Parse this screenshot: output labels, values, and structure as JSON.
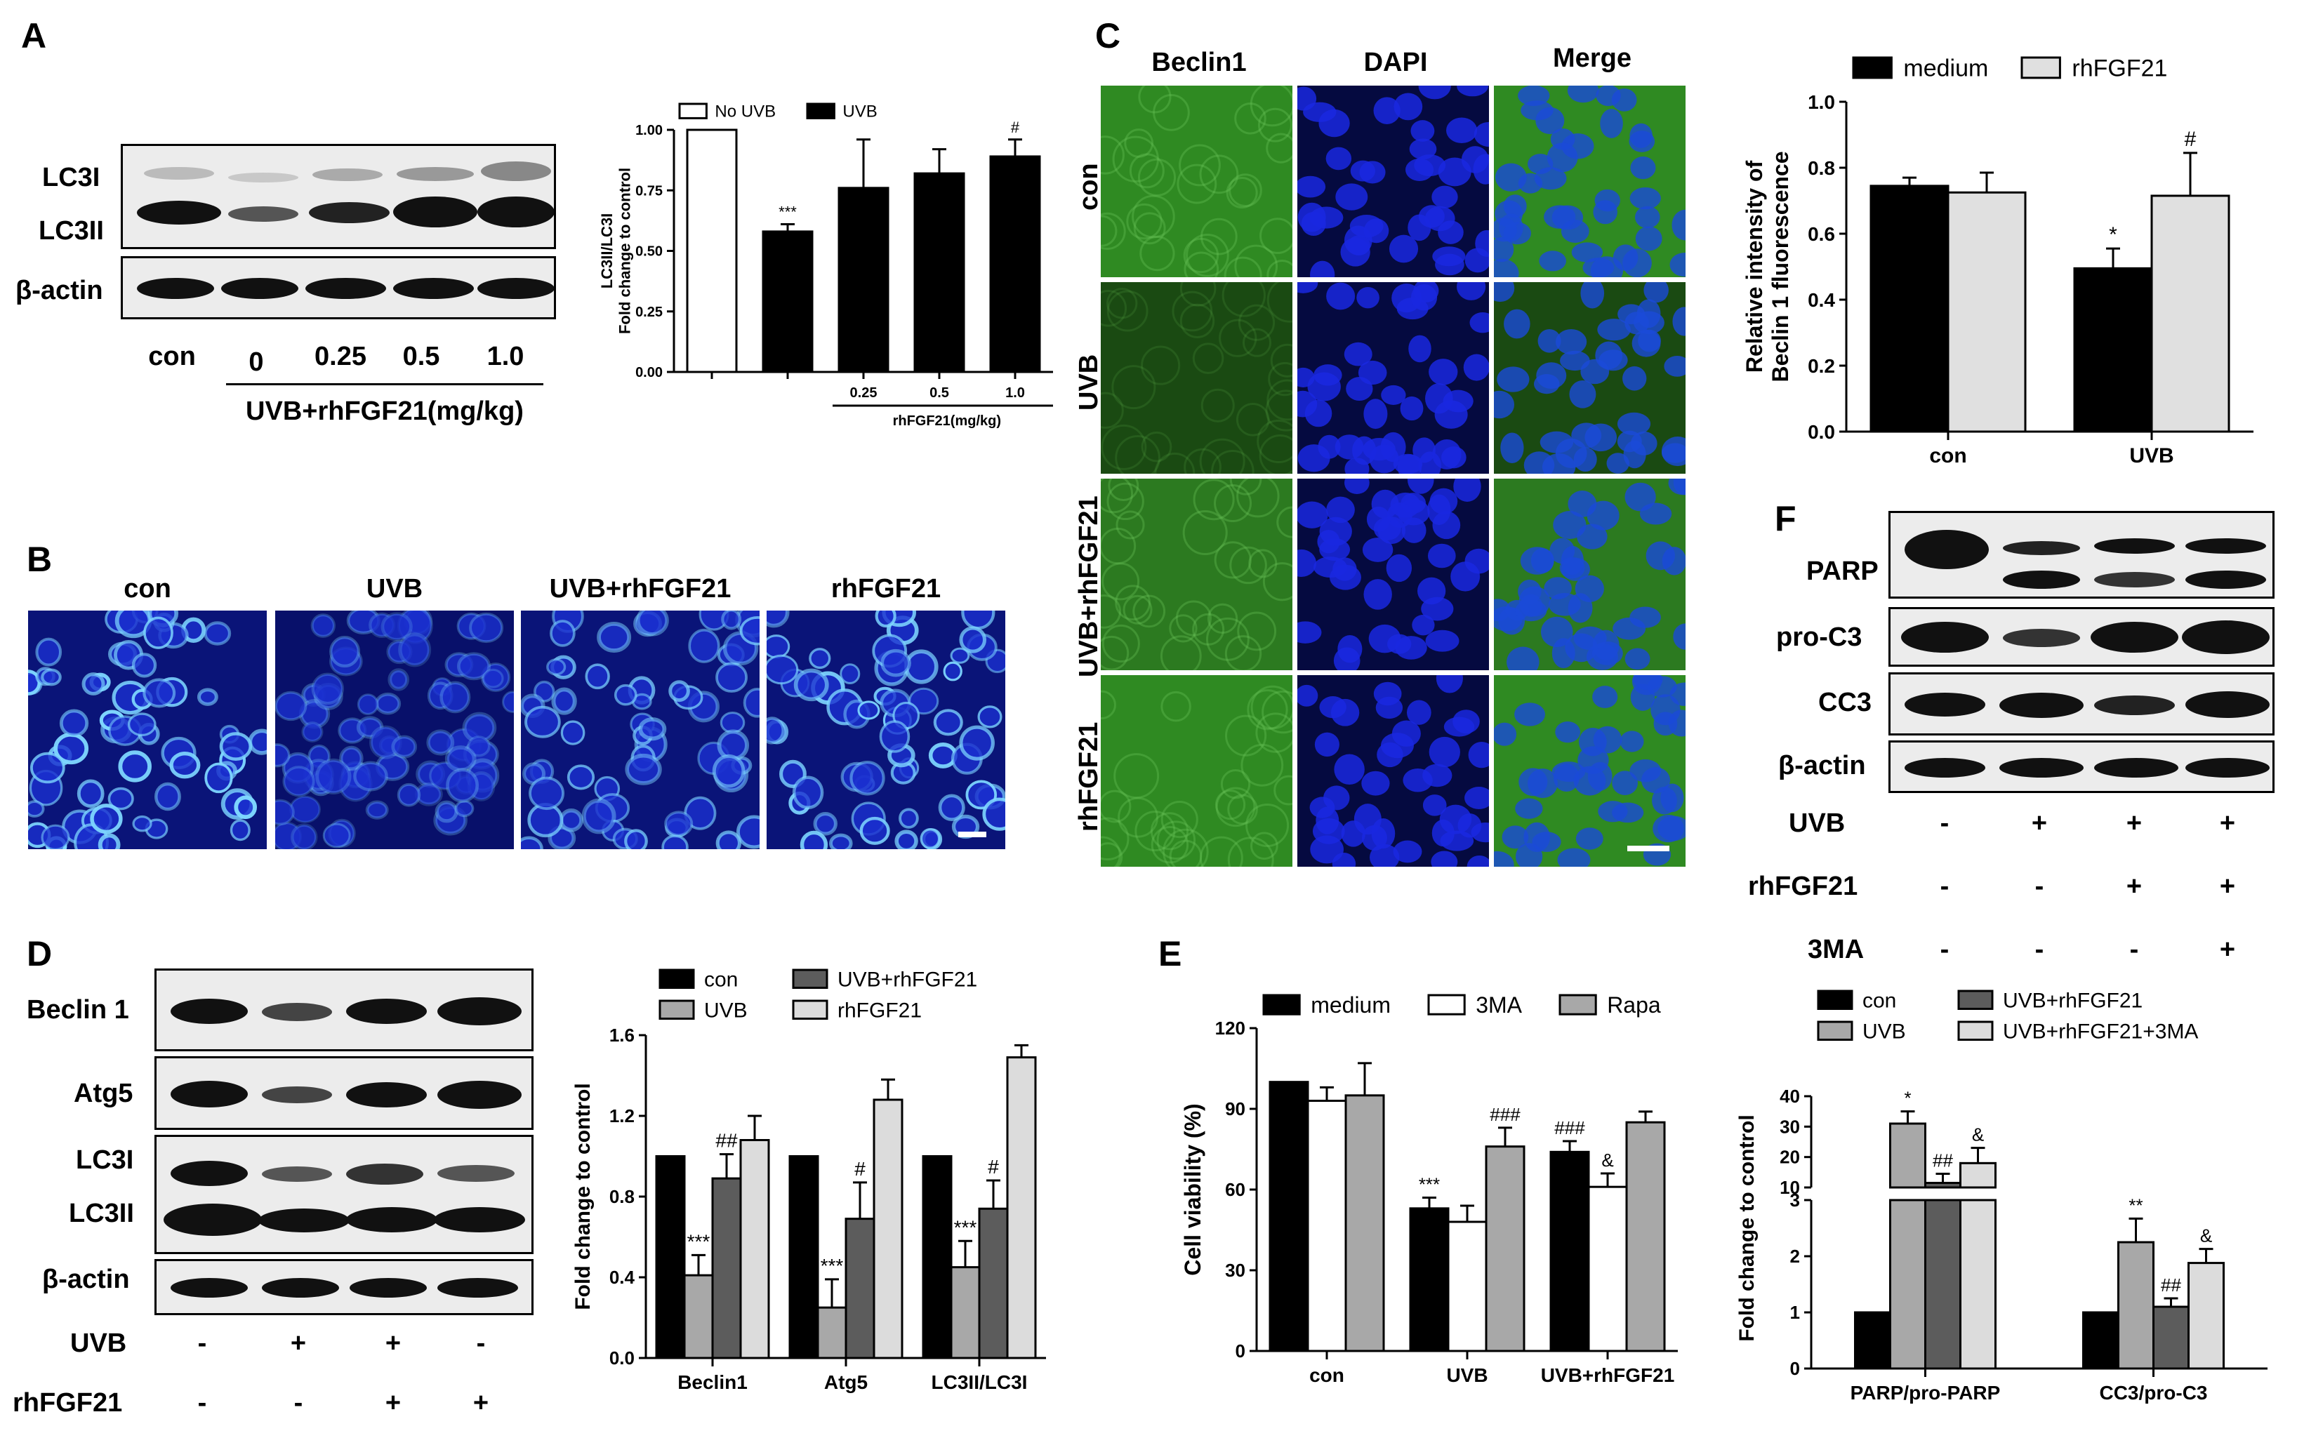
{
  "panels": {
    "A": "A",
    "B": "B",
    "C": "C",
    "D": "D",
    "E": "E",
    "F": "F"
  },
  "panelA": {
    "blot_labels": [
      "LC3I",
      "LC3II",
      "β-actin"
    ],
    "lane_labels": [
      "con",
      "0",
      "0.25",
      "0.5",
      "1.0"
    ],
    "treatment_label": "UVB+rhFGF21(mg/kg)"
  },
  "panelB": {
    "columns": [
      "con",
      "UVB",
      "UVB+rhFGF21",
      "rhFGF21"
    ],
    "colors": {
      "nucleus": "#1a2fd0",
      "bg": "#0a1478",
      "bright": "#7fd8ff"
    }
  },
  "panelC": {
    "columns": [
      "Beclin1",
      "DAPI",
      "Merge"
    ],
    "rows": [
      "con",
      "UVB",
      "UVB+rhFGF21",
      "rhFGF21"
    ],
    "colors": {
      "green": "#3a8a2a",
      "blue": "#1a28e0"
    }
  },
  "panelD": {
    "blot_labels": [
      "Beclin 1",
      "Atg5",
      "LC3I",
      "LC3II",
      "β-actin"
    ],
    "conditions": [
      {
        "label": "UVB",
        "signs": [
          "-",
          "+",
          "+",
          "-"
        ]
      },
      {
        "label": "rhFGF21",
        "signs": [
          "-",
          "-",
          "+",
          "+"
        ]
      }
    ]
  },
  "panelF": {
    "blot_labels": [
      "PARP",
      "pro-C3",
      "CC3",
      "β-actin"
    ],
    "conditions": [
      {
        "label": "UVB",
        "signs": [
          "-",
          "+",
          "+",
          "+"
        ]
      },
      {
        "label": "rhFGF21",
        "signs": [
          "-",
          "-",
          "+",
          "+"
        ]
      },
      {
        "label": "3MA",
        "signs": [
          "-",
          "-",
          "-",
          "+"
        ]
      }
    ]
  },
  "chart_data": [
    {
      "id": "A-chart",
      "type": "bar",
      "ylabel": "LC3II/LC3I\nFold change to control",
      "ylim": [
        0,
        1.0
      ],
      "yticks": [
        "0.00",
        "0.25",
        "0.50",
        "0.75",
        "1.00"
      ],
      "categories": [
        "",
        "",
        "0.25",
        "0.5",
        "1.0"
      ],
      "xgroup_label": "rhFGF21(mg/kg)",
      "legend": [
        "No UVB",
        "UVB"
      ],
      "values": [
        1.0,
        0.58,
        0.76,
        0.82,
        0.89
      ],
      "errors": [
        0,
        0.03,
        0.2,
        0.1,
        0.07
      ],
      "fills": [
        "#ffffff",
        "#000000",
        "#000000",
        "#000000",
        "#000000"
      ],
      "annotations": [
        "",
        "***",
        "",
        "",
        "#"
      ]
    },
    {
      "id": "C-chart",
      "type": "bar",
      "ylabel": "Relative intensity of\nBeclin 1 fluorescence",
      "ylim": [
        0,
        1.0
      ],
      "yticks": [
        "0.0",
        "0.2",
        "0.4",
        "0.6",
        "0.8",
        "1.0"
      ],
      "categories": [
        "con",
        "UVB"
      ],
      "series": [
        {
          "name": "medium",
          "values": [
            0.745,
            0.495
          ],
          "errors": [
            0.025,
            0.06
          ],
          "color": "#000000",
          "annotations": [
            "",
            "*"
          ]
        },
        {
          "name": "rhFGF21",
          "values": [
            0.725,
            0.715
          ],
          "errors": [
            0.06,
            0.13
          ],
          "color": "#e0e0e0",
          "annotations": [
            "",
            "#"
          ]
        }
      ]
    },
    {
      "id": "D-chart",
      "type": "bar",
      "ylabel": "Fold change to control",
      "ylim": [
        0,
        1.6
      ],
      "yticks": [
        "0.0",
        "0.4",
        "0.8",
        "1.2",
        "1.6"
      ],
      "categories": [
        "Beclin1",
        "Atg5",
        "LC3II/LC3I"
      ],
      "series": [
        {
          "name": "con",
          "values": [
            1.0,
            1.0,
            1.0
          ],
          "errors": [
            0,
            0,
            0
          ],
          "color": "#000000",
          "annotations": [
            "",
            "",
            ""
          ]
        },
        {
          "name": "UVB",
          "values": [
            0.41,
            0.25,
            0.45
          ],
          "errors": [
            0.1,
            0.14,
            0.13
          ],
          "color": "#a8a8a8",
          "annotations": [
            "***",
            "***",
            "***"
          ]
        },
        {
          "name": "UVB+rhFGF21",
          "values": [
            0.89,
            0.69,
            0.74
          ],
          "errors": [
            0.12,
            0.18,
            0.14
          ],
          "color": "#5c5c5c",
          "annotations": [
            "##",
            "#",
            "#"
          ]
        },
        {
          "name": "rhFGF21",
          "values": [
            1.08,
            1.28,
            1.49
          ],
          "errors": [
            0.12,
            0.1,
            0.06
          ],
          "color": "#dcdcdc",
          "annotations": [
            "",
            "",
            ""
          ]
        }
      ]
    },
    {
      "id": "E-chart",
      "type": "bar",
      "ylabel": "Cell viability (%)",
      "ylim": [
        0,
        120
      ],
      "yticks": [
        "0",
        "30",
        "60",
        "90",
        "120"
      ],
      "categories": [
        "con",
        "UVB",
        "UVB+rhFGF21"
      ],
      "series": [
        {
          "name": "medium",
          "values": [
            100,
            53,
            74
          ],
          "errors": [
            0,
            4,
            4
          ],
          "color": "#000000",
          "annotations": [
            "",
            "***",
            "###"
          ]
        },
        {
          "name": "3MA",
          "values": [
            93,
            48,
            61
          ],
          "errors": [
            5,
            6,
            5
          ],
          "color": "#ffffff",
          "annotations": [
            "",
            "",
            "&"
          ]
        },
        {
          "name": "Rapa",
          "values": [
            95,
            76,
            85
          ],
          "errors": [
            12,
            7,
            4
          ],
          "color": "#a8a8a8",
          "annotations": [
            "",
            "###",
            ""
          ]
        }
      ]
    },
    {
      "id": "F-chart",
      "type": "bar",
      "ylabel": "Fold change to control",
      "broken_axis": true,
      "ylim_lower": [
        0,
        3
      ],
      "ylim_upper": [
        10,
        40
      ],
      "yticks_lower": [
        "0",
        "1",
        "2",
        "3"
      ],
      "yticks_upper": [
        "10",
        "20",
        "30",
        "40"
      ],
      "categories": [
        "PARP/pro-PARP",
        "CC3/pro-C3"
      ],
      "series": [
        {
          "name": "con",
          "values": [
            1.0,
            1.0
          ],
          "errors": [
            0,
            0
          ],
          "color": "#000000",
          "annotations": [
            "",
            ""
          ]
        },
        {
          "name": "UVB",
          "values": [
            31,
            2.25
          ],
          "errors": [
            4,
            0.42
          ],
          "color": "#a8a8a8",
          "annotations": [
            "*",
            "**"
          ]
        },
        {
          "name": "UVB+rhFGF21",
          "values": [
            11.5,
            1.1
          ],
          "errors": [
            3,
            0.15
          ],
          "color": "#5c5c5c",
          "annotations": [
            "##",
            "##"
          ]
        },
        {
          "name": "UVB+rhFGF21+3MA",
          "values": [
            18,
            1.88
          ],
          "errors": [
            5,
            0.25
          ],
          "color": "#dcdcdc",
          "annotations": [
            "&",
            "&"
          ]
        }
      ]
    }
  ]
}
